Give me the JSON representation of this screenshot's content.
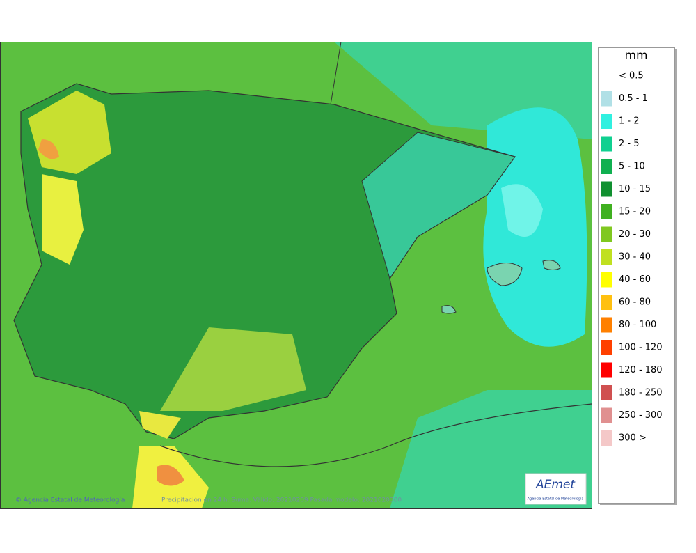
{
  "legend": {
    "title": "mm",
    "items": [
      {
        "label": "< 0.5",
        "color": "#ffffff"
      },
      {
        "label": "0.5 - 1",
        "color": "#b0e0e6"
      },
      {
        "label": "1 - 2",
        "color": "#30f0e0"
      },
      {
        "label": "2 - 5",
        "color": "#10d090"
      },
      {
        "label": "5 - 10",
        "color": "#10b050"
      },
      {
        "label": "10 - 15",
        "color": "#109030"
      },
      {
        "label": "15 - 20",
        "color": "#40b020"
      },
      {
        "label": "20 - 30",
        "color": "#80c820"
      },
      {
        "label": "30 - 40",
        "color": "#c0e020"
      },
      {
        "label": "40 - 60",
        "color": "#ffff00"
      },
      {
        "label": "60 - 80",
        "color": "#ffc010"
      },
      {
        "label": "80 - 100",
        "color": "#ff8000"
      },
      {
        "label": "100 - 120",
        "color": "#ff4000"
      },
      {
        "label": "120 - 180",
        "color": "#ff0000"
      },
      {
        "label": "180 - 250",
        "color": "#d05050"
      },
      {
        "label": "250 - 300",
        "color": "#e09090"
      },
      {
        "label": "300 >",
        "color": "#f4c8c8"
      }
    ]
  },
  "footer": {
    "credit": "© Agencia Estatal de Meteorología",
    "caption": "Precipitación en 24 h. Suma. Válido: 20210209 Pasada modelo: 2021020300"
  },
  "logo": {
    "name": "AEmet",
    "subtitle": "Agencia Estatal de Meteorología"
  }
}
